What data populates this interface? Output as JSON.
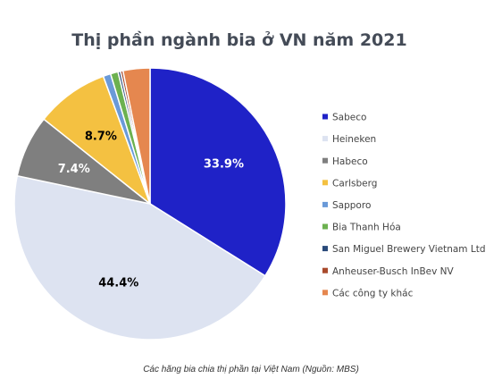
{
  "chart_data": {
    "type": "pie",
    "title": "Thị phần ngành bia ở VN năm 2021",
    "categories": [
      "Sabeco",
      "Heineken",
      "Habeco",
      "Carlsberg",
      "Sapporo",
      "Bia Thanh Hóa",
      "San Miguel Brewery Vietnam Ltd",
      "Anheuser-Busch InBev NV",
      "Các công ty khác"
    ],
    "values": [
      33.9,
      44.4,
      7.4,
      8.7,
      0.9,
      0.9,
      0.3,
      0.3,
      3.2
    ],
    "data_labels": [
      "33.9%",
      "44.4%",
      "7.4%",
      "8.7%",
      "",
      "",
      "",
      "",
      ""
    ],
    "colors": [
      "#1f22c7",
      "#dde3f1",
      "#7f7f7f",
      "#f4c141",
      "#6a9ad8",
      "#6cb150",
      "#2a4a7a",
      "#a94a2c",
      "#e5874f"
    ],
    "label_colors": [
      "#ffffff",
      "#000000",
      "#ffffff",
      "#000000",
      "",
      "",
      "",
      "",
      ""
    ],
    "legend_position": "right"
  },
  "caption": "Các hãng bia chia thị phần tại Việt Nam (Nguồn: MBS)"
}
